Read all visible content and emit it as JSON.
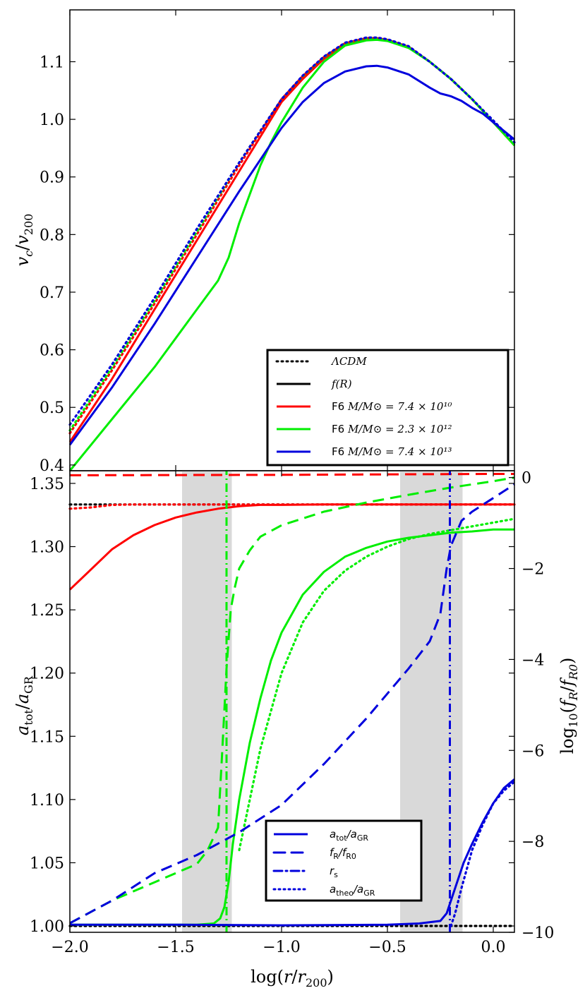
{
  "chart_data": [
    {
      "type": "line",
      "panel": "top",
      "ylabel": "v_c/v_200",
      "xlim": [
        -2.0,
        0.1
      ],
      "ylim": [
        0.39,
        1.19
      ],
      "yticks": [
        "0.4",
        "0.5",
        "0.6",
        "0.7",
        "0.8",
        "0.9",
        "1.0",
        "1.1"
      ],
      "ytick_values": [
        0.4,
        0.5,
        0.6,
        0.7,
        0.8,
        0.9,
        1.0,
        1.1
      ],
      "legend_position": "lower-right",
      "legend": [
        {
          "prefix": "",
          "label": "ΛCDM",
          "style": "dotted",
          "color": "#000000"
        },
        {
          "prefix": "",
          "label": "f(R)",
          "style": "solid",
          "color": "#000000"
        },
        {
          "prefix": "F6",
          "label": "M/M⊙ = 7.4 × 10¹⁰",
          "style": "solid",
          "color": "#ff0000"
        },
        {
          "prefix": "F6",
          "label": "M/M⊙ = 2.3 × 10¹²",
          "style": "solid",
          "color": "#00ee00"
        },
        {
          "prefix": "F6",
          "label": "M/M⊙ = 7.4 × 10¹³",
          "style": "solid",
          "color": "#0000dd"
        }
      ],
      "series": [
        {
          "name": "red_fR",
          "color": "#ff0000",
          "style": "solid",
          "x": [
            -2.0,
            -1.8,
            -1.6,
            -1.4,
            -1.2,
            -1.0,
            -0.9,
            -0.8,
            -0.7,
            -0.6,
            -0.55,
            -0.5,
            -0.4,
            -0.3,
            -0.2,
            -0.1,
            0.0,
            0.1
          ],
          "y": [
            0.44,
            0.55,
            0.67,
            0.79,
            0.91,
            1.03,
            1.07,
            1.105,
            1.13,
            1.14,
            1.14,
            1.137,
            1.125,
            1.1,
            1.07,
            1.035,
            0.995,
            0.955
          ]
        },
        {
          "name": "red_lcdm",
          "color": "#ff0000",
          "style": "dotted",
          "x": [
            -2.0,
            -1.8,
            -1.6,
            -1.4,
            -1.2,
            -1.0,
            -0.9,
            -0.8,
            -0.7,
            -0.6,
            -0.55,
            -0.5,
            -0.4,
            -0.3,
            -0.2,
            -0.1,
            0.0,
            0.1
          ],
          "y": [
            0.455,
            0.565,
            0.68,
            0.8,
            0.92,
            1.035,
            1.075,
            1.108,
            1.132,
            1.141,
            1.141,
            1.138,
            1.126,
            1.1,
            1.07,
            1.035,
            0.995,
            0.955
          ]
        },
        {
          "name": "green_fR",
          "color": "#00ee00",
          "style": "solid",
          "x": [
            -2.0,
            -1.8,
            -1.6,
            -1.4,
            -1.3,
            -1.25,
            -1.2,
            -1.15,
            -1.1,
            -1.05,
            -1.0,
            -0.9,
            -0.8,
            -0.7,
            -0.6,
            -0.55,
            -0.5,
            -0.4,
            -0.3,
            -0.2,
            -0.1,
            0.0,
            0.1
          ],
          "y": [
            0.39,
            0.48,
            0.57,
            0.67,
            0.72,
            0.76,
            0.82,
            0.87,
            0.92,
            0.96,
            0.995,
            1.055,
            1.1,
            1.128,
            1.137,
            1.138,
            1.136,
            1.124,
            1.1,
            1.07,
            1.035,
            0.995,
            0.955
          ]
        },
        {
          "name": "green_lcdm",
          "color": "#00ee00",
          "style": "dotted",
          "x": [
            -2.0,
            -1.8,
            -1.6,
            -1.4,
            -1.2,
            -1.0,
            -0.9,
            -0.8,
            -0.7,
            -0.6,
            -0.55,
            -0.5,
            -0.4,
            -0.3,
            -0.2,
            -0.1,
            0.0,
            0.1
          ],
          "y": [
            0.46,
            0.57,
            0.685,
            0.805,
            0.925,
            1.035,
            1.075,
            1.108,
            1.132,
            1.141,
            1.141,
            1.138,
            1.126,
            1.1,
            1.07,
            1.035,
            0.995,
            0.955
          ]
        },
        {
          "name": "blue_fR",
          "color": "#0000dd",
          "style": "solid",
          "x": [
            -2.0,
            -1.8,
            -1.6,
            -1.4,
            -1.2,
            -1.0,
            -0.9,
            -0.8,
            -0.7,
            -0.6,
            -0.55,
            -0.5,
            -0.4,
            -0.3,
            -0.25,
            -0.2,
            -0.15,
            -0.1,
            -0.05,
            0.0,
            0.05,
            0.1
          ],
          "y": [
            0.435,
            0.535,
            0.645,
            0.76,
            0.875,
            0.985,
            1.03,
            1.063,
            1.083,
            1.092,
            1.093,
            1.09,
            1.078,
            1.055,
            1.045,
            1.04,
            1.032,
            1.02,
            1.01,
            0.995,
            0.98,
            0.965
          ]
        },
        {
          "name": "blue_lcdm",
          "color": "#0000dd",
          "style": "dotted",
          "x": [
            -2.0,
            -1.8,
            -1.6,
            -1.4,
            -1.2,
            -1.0,
            -0.9,
            -0.8,
            -0.7,
            -0.6,
            -0.55,
            -0.5,
            -0.4,
            -0.3,
            -0.2,
            -0.1,
            0.0,
            0.1
          ],
          "y": [
            0.47,
            0.575,
            0.69,
            0.81,
            0.925,
            1.035,
            1.076,
            1.109,
            1.133,
            1.142,
            1.142,
            1.139,
            1.127,
            1.1,
            1.07,
            1.035,
            0.998,
            0.96
          ]
        }
      ]
    },
    {
      "type": "line",
      "panel": "bottom",
      "ylabel": "a_tot/a_GR",
      "ylabel_right": "log10(f_R/f_R0)",
      "xlabel": "log(r/r_200)",
      "xlim": [
        -2.0,
        0.1
      ],
      "ylim": [
        0.995,
        1.36
      ],
      "ylim_right": [
        -10,
        0.15
      ],
      "xticks": [
        "−2.0",
        "−1.5",
        "−1.0",
        "−0.5",
        "0.0"
      ],
      "xtick_values": [
        -2.0,
        -1.5,
        -1.0,
        -0.5,
        0.0
      ],
      "yticks": [
        "1.00",
        "1.05",
        "1.10",
        "1.15",
        "1.20",
        "1.25",
        "1.30",
        "1.35"
      ],
      "ytick_values": [
        1.0,
        1.05,
        1.1,
        1.15,
        1.2,
        1.25,
        1.3,
        1.35
      ],
      "yticks_right": [
        "0",
        "−2",
        "−4",
        "−6",
        "−8",
        "−10"
      ],
      "ytick_values_right": [
        0,
        -2,
        -4,
        -6,
        -8,
        -10
      ],
      "shaded_regions": [
        [
          -1.47,
          -1.235
        ],
        [
          -0.44,
          -0.145
        ]
      ],
      "legend_position": "lower-center",
      "legend": [
        {
          "label": "a_tot/a_GR",
          "style": "solid",
          "color": "#0000dd"
        },
        {
          "label": "f_R/f_R0",
          "style": "dashed",
          "color": "#0000dd"
        },
        {
          "label": "r_s",
          "style": "dashdot",
          "color": "#0000dd"
        },
        {
          "label": "a_theo/a_GR",
          "style": "dotted",
          "color": "#0000dd"
        }
      ],
      "series": [
        {
          "name": "lcdm_theo",
          "color": "#000000",
          "style": "dotted",
          "axis": "left",
          "x": [
            -2.0,
            0.1
          ],
          "y": [
            1.3333,
            1.3333
          ]
        },
        {
          "name": "lcdm_base",
          "color": "#000000",
          "style": "dotted",
          "axis": "left",
          "x": [
            -2.0,
            0.1
          ],
          "y": [
            1.0,
            1.0
          ]
        },
        {
          "name": "red_atot",
          "color": "#ff0000",
          "style": "solid",
          "axis": "left",
          "x": [
            -2.0,
            -1.9,
            -1.8,
            -1.7,
            -1.6,
            -1.5,
            -1.4,
            -1.3,
            -1.2,
            -1.1,
            -1.0,
            -0.8,
            -0.5,
            0.1
          ],
          "y": [
            1.266,
            1.282,
            1.298,
            1.309,
            1.317,
            1.323,
            1.327,
            1.33,
            1.332,
            1.333,
            1.333,
            1.3333,
            1.3333,
            1.3333
          ]
        },
        {
          "name": "red_atheo",
          "color": "#ff0000",
          "style": "dotted",
          "axis": "left",
          "x": [
            -2.0,
            -1.9,
            -1.85,
            -1.8,
            -1.7,
            -1.6,
            -1.5,
            -1.3,
            -1.0,
            0.1
          ],
          "y": [
            1.33,
            1.331,
            1.332,
            1.333,
            1.3333,
            1.3333,
            1.3333,
            1.3333,
            1.3333,
            1.3333
          ]
        },
        {
          "name": "red_fR",
          "color": "#ff0000",
          "style": "dashed",
          "axis": "right",
          "x": [
            -2.0,
            -1.0,
            0.0,
            0.1
          ],
          "y": [
            0.05,
            0.06,
            0.08,
            0.08
          ]
        },
        {
          "name": "green_atot",
          "color": "#00ee00",
          "style": "solid",
          "axis": "left",
          "x": [
            -2.0,
            -1.8,
            -1.6,
            -1.4,
            -1.32,
            -1.29,
            -1.27,
            -1.25,
            -1.23,
            -1.2,
            -1.15,
            -1.1,
            -1.05,
            -1.0,
            -0.9,
            -0.8,
            -0.7,
            -0.6,
            -0.5,
            -0.4,
            -0.3,
            -0.2,
            -0.1,
            0.0,
            0.1
          ],
          "y": [
            1.001,
            1.001,
            1.001,
            1.001,
            1.002,
            1.006,
            1.015,
            1.035,
            1.065,
            1.1,
            1.145,
            1.18,
            1.21,
            1.232,
            1.262,
            1.28,
            1.292,
            1.299,
            1.304,
            1.307,
            1.309,
            1.311,
            1.312,
            1.3135,
            1.3135
          ]
        },
        {
          "name": "green_atheo",
          "color": "#00ee00",
          "style": "dotted",
          "axis": "left",
          "x": [
            -1.2,
            -1.15,
            -1.1,
            -1.05,
            -1.0,
            -0.9,
            -0.8,
            -0.7,
            -0.6,
            -0.5,
            -0.4,
            -0.3,
            -0.2,
            -0.1,
            0.0,
            0.1
          ],
          "y": [
            1.06,
            1.1,
            1.14,
            1.17,
            1.2,
            1.24,
            1.265,
            1.281,
            1.292,
            1.3,
            1.306,
            1.31,
            1.313,
            1.316,
            1.319,
            1.322
          ]
        },
        {
          "name": "green_fR",
          "color": "#00ee00",
          "style": "dashed",
          "axis": "right",
          "x": [
            -2.0,
            -1.8,
            -1.6,
            -1.5,
            -1.4,
            -1.35,
            -1.3,
            -1.28,
            -1.26,
            -1.24,
            -1.22,
            -1.2,
            -1.15,
            -1.1,
            -1.0,
            -0.8,
            -0.6,
            -0.4,
            -0.2,
            0.0,
            0.1
          ],
          "y": [
            -9.8,
            -9.3,
            -8.9,
            -8.7,
            -8.5,
            -8.2,
            -7.7,
            -6.0,
            -4.2,
            -2.9,
            -2.4,
            -2.0,
            -1.6,
            -1.3,
            -1.05,
            -0.75,
            -0.55,
            -0.38,
            -0.22,
            -0.08,
            0.0
          ]
        },
        {
          "name": "green_rs",
          "color": "#00ee00",
          "style": "dashdot",
          "axis": "left",
          "x": [
            -1.26,
            -1.26
          ],
          "y": [
            0.995,
            1.36
          ]
        },
        {
          "name": "blue_atot",
          "color": "#0000dd",
          "style": "solid",
          "axis": "left",
          "x": [
            -2.0,
            -1.5,
            -1.0,
            -0.5,
            -0.35,
            -0.25,
            -0.22,
            -0.2,
            -0.17,
            -0.14,
            -0.1,
            -0.05,
            0.0,
            0.05,
            0.1
          ],
          "y": [
            1.001,
            1.001,
            1.0005,
            1.001,
            1.002,
            1.004,
            1.01,
            1.02,
            1.035,
            1.05,
            1.065,
            1.082,
            1.097,
            1.109,
            1.116
          ]
        },
        {
          "name": "blue_atheo",
          "color": "#0000dd",
          "style": "dotted",
          "axis": "left",
          "x": [
            -0.2,
            -0.18,
            -0.15,
            -0.1,
            -0.05,
            0.0,
            0.05,
            0.1
          ],
          "y": [
            1.0,
            1.01,
            1.03,
            1.06,
            1.08,
            1.097,
            1.107,
            1.114
          ]
        },
        {
          "name": "blue_fR",
          "color": "#0000dd",
          "style": "dashed",
          "axis": "right",
          "x": [
            -2.0,
            -1.8,
            -1.6,
            -1.4,
            -1.2,
            -1.0,
            -0.8,
            -0.6,
            -0.4,
            -0.3,
            -0.25,
            -0.22,
            -0.2,
            -0.15,
            -0.1,
            -0.05,
            0.0,
            0.05,
            0.1
          ],
          "y": [
            -9.8,
            -9.3,
            -8.7,
            -8.3,
            -7.8,
            -7.2,
            -6.3,
            -5.3,
            -4.2,
            -3.6,
            -3.0,
            -2.0,
            -1.5,
            -0.95,
            -0.75,
            -0.6,
            -0.45,
            -0.3,
            -0.15
          ]
        },
        {
          "name": "blue_rs",
          "color": "#0000dd",
          "style": "dashdot",
          "axis": "left",
          "x": [
            -0.205,
            -0.205
          ],
          "y": [
            0.995,
            1.36
          ]
        }
      ]
    }
  ]
}
